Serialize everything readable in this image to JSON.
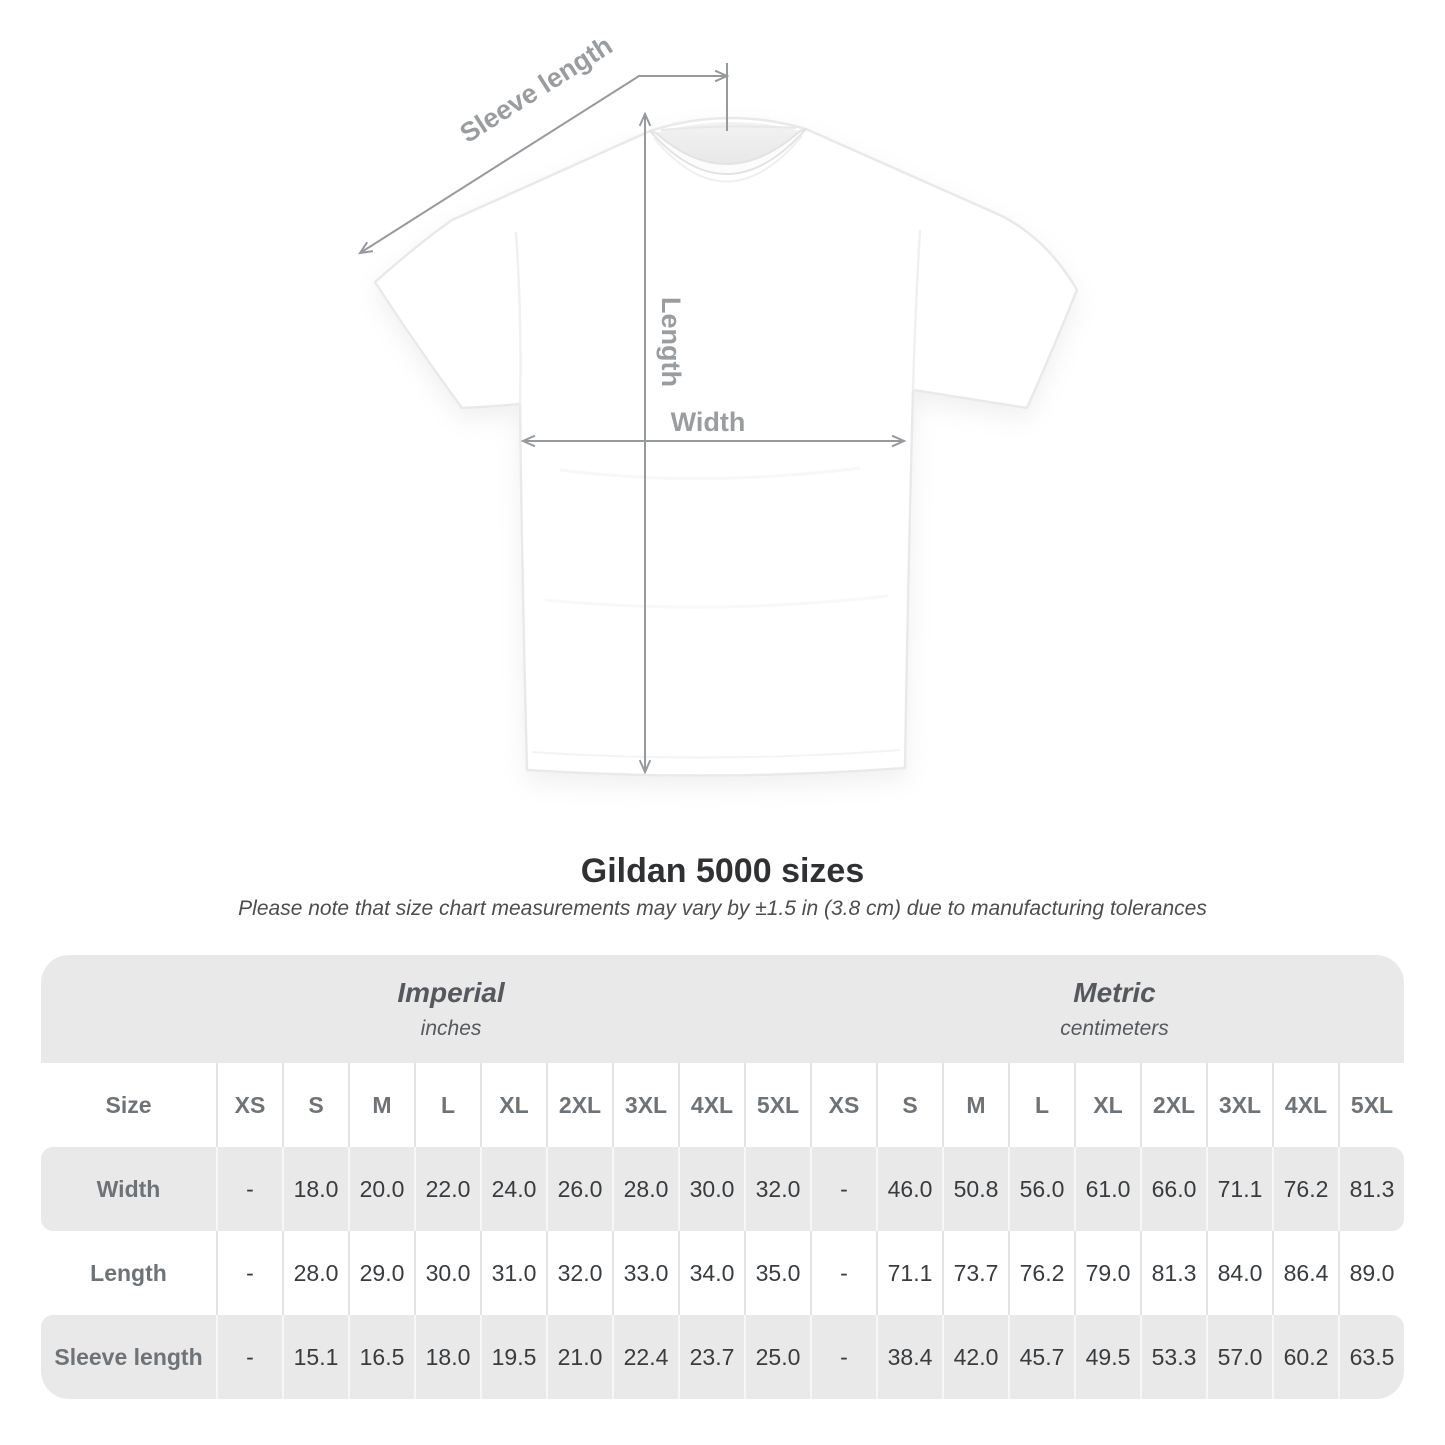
{
  "title": "Gildan 5000 sizes",
  "subtitle": "Please note that size chart measurements may vary by ±1.5 in (3.8 cm) due to manufacturing tolerances",
  "diagram": {
    "sleeve_label": "Sleeve length",
    "length_label": "Length",
    "width_label": "Width"
  },
  "chart_data": {
    "type": "table",
    "title": "Gildan 5000 sizes",
    "groups": [
      {
        "label": "Imperial",
        "unit": "inches"
      },
      {
        "label": "Metric",
        "unit": "centimeters"
      }
    ],
    "corner_header": "Size",
    "sizes": [
      "XS",
      "S",
      "M",
      "L",
      "XL",
      "2XL",
      "3XL",
      "4XL",
      "5XL"
    ],
    "rows": [
      {
        "label": "Width",
        "imperial": [
          "-",
          "18.0",
          "20.0",
          "22.0",
          "24.0",
          "26.0",
          "28.0",
          "30.0",
          "32.0"
        ],
        "metric": [
          "-",
          "46.0",
          "50.8",
          "56.0",
          "61.0",
          "66.0",
          "71.1",
          "76.2",
          "81.3"
        ]
      },
      {
        "label": "Length",
        "imperial": [
          "-",
          "28.0",
          "29.0",
          "30.0",
          "31.0",
          "32.0",
          "33.0",
          "34.0",
          "35.0"
        ],
        "metric": [
          "-",
          "71.1",
          "73.7",
          "76.2",
          "79.0",
          "81.3",
          "84.0",
          "86.4",
          "89.0"
        ]
      },
      {
        "label": "Sleeve length",
        "imperial": [
          "-",
          "15.1",
          "16.5",
          "18.0",
          "19.5",
          "21.0",
          "22.4",
          "23.7",
          "25.0"
        ],
        "metric": [
          "-",
          "38.4",
          "42.0",
          "45.7",
          "49.5",
          "53.3",
          "57.0",
          "60.2",
          "63.5"
        ]
      }
    ]
  },
  "colors": {
    "stripe_gray": "#e9e9e9",
    "separator_on_white": "#e4e4e4",
    "separator_on_gray": "#f5f6f6",
    "dimension_line": "#969a9e",
    "dimension_label": "#9a9da0",
    "header_text": "#6e7377",
    "value_text": "#393c3f",
    "title_text": "#2f3133"
  }
}
